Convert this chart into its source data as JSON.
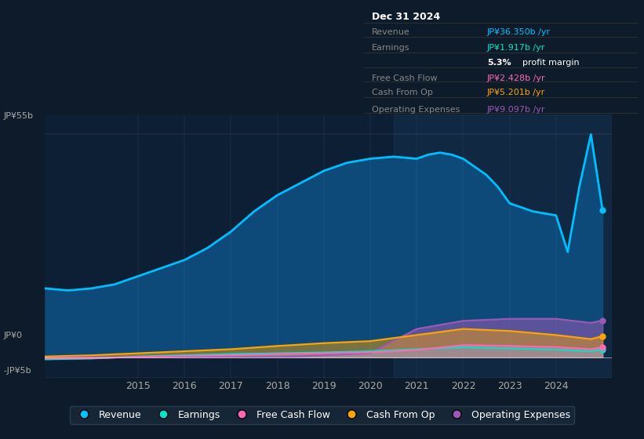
{
  "bg_color": "#0d1b2a",
  "plot_bg_color": "#0d1f35",
  "title_box": {
    "date": "Dec 31 2024",
    "rows": [
      {
        "label": "Revenue",
        "value": "JP¥36.350b /yr",
        "value_color": "#00bfff"
      },
      {
        "label": "Earnings",
        "value": "JP¥1.917b /yr",
        "value_color": "#00e5c8"
      },
      {
        "label": "",
        "value": "5.3% profit margin",
        "value_color": "#ffffff",
        "bold": "5.3%"
      },
      {
        "label": "Free Cash Flow",
        "value": "JP¥2.428b /yr",
        "value_color": "#ff69b4"
      },
      {
        "label": "Cash From Op",
        "value": "JP¥5.201b /yr",
        "value_color": "#ffa500"
      },
      {
        "label": "Operating Expenses",
        "value": "JP¥9.097b /yr",
        "value_color": "#9b59b6"
      }
    ]
  },
  "ylim": [
    -5,
    60
  ],
  "yticks": [
    -5,
    0,
    55
  ],
  "ytick_labels": [
    "-JP¥5b",
    "JP¥0",
    "JP¥55b"
  ],
  "legend": [
    {
      "label": "Revenue",
      "color": "#00bfff"
    },
    {
      "label": "Earnings",
      "color": "#00e5c8"
    },
    {
      "label": "Free Cash Flow",
      "color": "#ff69b4"
    },
    {
      "label": "Cash From Op",
      "color": "#ffa500"
    },
    {
      "label": "Operating Expenses",
      "color": "#9b59b6"
    }
  ],
  "revenue": {
    "years": [
      2013.0,
      2013.5,
      2014.0,
      2014.5,
      2015.0,
      2015.5,
      2016.0,
      2016.5,
      2017.0,
      2017.5,
      2018.0,
      2018.5,
      2019.0,
      2019.5,
      2020.0,
      2020.5,
      2021.0,
      2021.25,
      2021.5,
      2021.75,
      2022.0,
      2022.25,
      2022.5,
      2022.75,
      2023.0,
      2023.5,
      2024.0,
      2024.25,
      2024.5,
      2024.75,
      2025.0
    ],
    "values": [
      17,
      16.5,
      17,
      18,
      20,
      22,
      24,
      27,
      31,
      36,
      40,
      43,
      46,
      48,
      49,
      49.5,
      49,
      50,
      50.5,
      50,
      49,
      47,
      45,
      42,
      38,
      36,
      35,
      26,
      42,
      55,
      36.35
    ],
    "color": "#00bfff",
    "fill_color": "#0d4a7a",
    "linewidth": 2.0
  },
  "earnings": {
    "years": [
      2013.0,
      2014.0,
      2015.0,
      2016.0,
      2017.0,
      2018.0,
      2019.0,
      2020.0,
      2021.0,
      2022.0,
      2023.0,
      2024.0,
      2024.75,
      2025.0
    ],
    "values": [
      -0.5,
      -0.3,
      0.2,
      0.5,
      0.8,
      1.0,
      1.2,
      1.5,
      2.0,
      2.5,
      2.2,
      1.9,
      1.5,
      1.917
    ],
    "color": "#00e5c8",
    "fill_color": "#00e5c8",
    "linewidth": 1.5
  },
  "free_cash_flow": {
    "years": [
      2013.0,
      2014.0,
      2015.0,
      2016.0,
      2017.0,
      2018.0,
      2019.0,
      2020.0,
      2021.0,
      2022.0,
      2023.0,
      2024.0,
      2024.75,
      2025.0
    ],
    "values": [
      -0.3,
      -0.2,
      0.1,
      0.3,
      0.5,
      0.8,
      1.0,
      1.2,
      1.8,
      3.0,
      2.8,
      2.5,
      2.0,
      2.428
    ],
    "color": "#ff69b4",
    "fill_color": "#ff69b4",
    "linewidth": 1.5
  },
  "cash_from_op": {
    "years": [
      2013.0,
      2014.0,
      2015.0,
      2016.0,
      2017.0,
      2018.0,
      2019.0,
      2020.0,
      2021.0,
      2022.0,
      2023.0,
      2024.0,
      2024.75,
      2025.0
    ],
    "values": [
      0.2,
      0.5,
      1.0,
      1.5,
      2.0,
      2.8,
      3.5,
      4.0,
      5.5,
      7.0,
      6.5,
      5.5,
      4.5,
      5.201
    ],
    "color": "#ffa500",
    "fill_color": "#ffa500",
    "linewidth": 1.5
  },
  "operating_expenses": {
    "years": [
      2013.0,
      2014.0,
      2015.0,
      2016.0,
      2017.0,
      2018.0,
      2019.0,
      2020.0,
      2021.0,
      2022.0,
      2023.0,
      2024.0,
      2024.75,
      2025.0
    ],
    "values": [
      0.0,
      0.0,
      0.0,
      0.0,
      0.0,
      0.0,
      0.5,
      1.0,
      7.0,
      9.0,
      9.5,
      9.5,
      8.5,
      9.097
    ],
    "color": "#9b59b6",
    "fill_color": "#9b59b6",
    "linewidth": 1.5
  },
  "shaded_region": {
    "x_start": 2020.5,
    "x_end": 2025.2,
    "color": "#1a3a5c",
    "alpha": 0.35
  },
  "xlim": [
    2013.0,
    2025.2
  ],
  "xticks": [
    2015,
    2016,
    2017,
    2018,
    2019,
    2020,
    2021,
    2022,
    2023,
    2024
  ]
}
